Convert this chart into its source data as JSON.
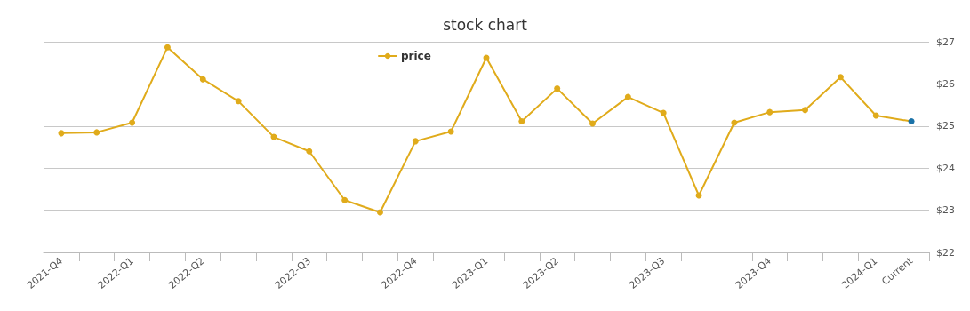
{
  "chart_data": {
    "type": "line",
    "title": "stock chart",
    "categories": [
      "2021-Q4",
      null,
      "2022-Q1",
      null,
      "2022-Q2",
      null,
      null,
      "2022-Q3",
      null,
      null,
      "2022-Q4",
      null,
      "2023-Q1",
      null,
      "2023-Q2",
      null,
      null,
      "2023-Q3",
      null,
      null,
      "2023-Q4",
      null,
      null,
      "2024-Q1",
      "Current"
    ],
    "series": [
      {
        "name": "price",
        "color": "#e0ab1b",
        "colors": [
          "#e0ab1b",
          "#e0ab1b",
          "#e0ab1b",
          "#e0ab1b",
          "#e0ab1b",
          "#e0ab1b",
          "#e0ab1b",
          "#e0ab1b",
          "#e0ab1b",
          "#e0ab1b",
          "#e0ab1b",
          "#e0ab1b",
          "#e0ab1b",
          "#e0ab1b",
          "#e0ab1b",
          "#e0ab1b",
          "#e0ab1b",
          "#e0ab1b",
          "#e0ab1b",
          "#e0ab1b",
          "#e0ab1b",
          "#e0ab1b",
          "#e0ab1b",
          "#e0ab1b",
          "#1a72a8"
        ],
        "values": [
          24.83,
          24.85,
          25.08,
          26.87,
          26.11,
          25.59,
          24.74,
          24.4,
          23.24,
          22.95,
          24.64,
          24.87,
          26.62,
          25.11,
          25.89,
          25.06,
          25.69,
          25.31,
          23.35,
          25.08,
          25.33,
          25.38,
          26.16,
          25.25,
          25.11
        ]
      }
    ],
    "ylim": [
      22,
      27
    ],
    "yticks": [
      {
        "value": 22,
        "label": "$22"
      },
      {
        "value": 23,
        "label": "$23"
      },
      {
        "value": 24,
        "label": "$24"
      },
      {
        "value": 25,
        "label": "$25"
      },
      {
        "value": 26,
        "label": "$26"
      },
      {
        "value": 27,
        "label": "$27"
      }
    ],
    "grid": "y",
    "legend": "top",
    "marker": "circle",
    "line_style": "solid"
  }
}
